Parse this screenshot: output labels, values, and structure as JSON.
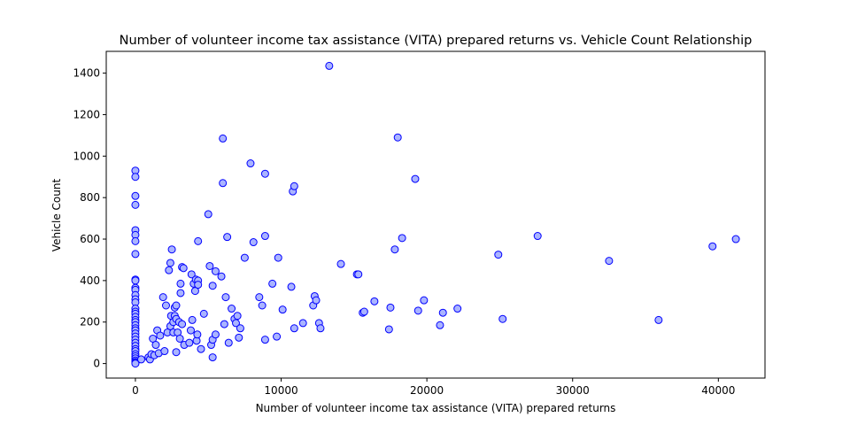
{
  "chart_data": {
    "type": "scatter",
    "title": "Number of volunteer income tax assistance (VITA) prepared returns vs. Vehicle Count Relationship",
    "xlabel": "Number of volunteer income tax assistance (VITA) prepared returns",
    "ylabel": "Vehicle Count",
    "xlim": [
      -2000,
      43200
    ],
    "ylim": [
      -70,
      1505
    ],
    "xticks": [
      0,
      10000,
      20000,
      30000,
      40000
    ],
    "yticks": [
      0,
      200,
      400,
      600,
      800,
      1000,
      1200,
      1400
    ],
    "grid": false,
    "legend": "none",
    "marker_fill": "#aab4ff",
    "marker_edge": "#0000ff",
    "points": [
      [
        0,
        930
      ],
      [
        0,
        900
      ],
      [
        0,
        808
      ],
      [
        0,
        765
      ],
      [
        0,
        643
      ],
      [
        0,
        620
      ],
      [
        0,
        590
      ],
      [
        0,
        528
      ],
      [
        0,
        405
      ],
      [
        0,
        400
      ],
      [
        0,
        365
      ],
      [
        0,
        355
      ],
      [
        0,
        330
      ],
      [
        0,
        310
      ],
      [
        0,
        295
      ],
      [
        0,
        265
      ],
      [
        0,
        250
      ],
      [
        0,
        240
      ],
      [
        0,
        225
      ],
      [
        0,
        210
      ],
      [
        0,
        200
      ],
      [
        0,
        185
      ],
      [
        0,
        170
      ],
      [
        0,
        160
      ],
      [
        0,
        145
      ],
      [
        0,
        130
      ],
      [
        0,
        115
      ],
      [
        0,
        100
      ],
      [
        0,
        85
      ],
      [
        0,
        70
      ],
      [
        0,
        60
      ],
      [
        0,
        45
      ],
      [
        0,
        35
      ],
      [
        0,
        25
      ],
      [
        0,
        15
      ],
      [
        0,
        8
      ],
      [
        0,
        3
      ],
      [
        0,
        0
      ],
      [
        400,
        20
      ],
      [
        900,
        30
      ],
      [
        1000,
        20
      ],
      [
        1100,
        45
      ],
      [
        1200,
        120
      ],
      [
        1300,
        40
      ],
      [
        1400,
        90
      ],
      [
        1500,
        160
      ],
      [
        1600,
        50
      ],
      [
        1700,
        135
      ],
      [
        1900,
        320
      ],
      [
        2000,
        60
      ],
      [
        2100,
        280
      ],
      [
        2200,
        150
      ],
      [
        2300,
        450
      ],
      [
        2400,
        485
      ],
      [
        2400,
        180
      ],
      [
        2450,
        230
      ],
      [
        2500,
        550
      ],
      [
        2600,
        200
      ],
      [
        2600,
        150
      ],
      [
        2700,
        270
      ],
      [
        2700,
        230
      ],
      [
        2800,
        280
      ],
      [
        2800,
        55
      ],
      [
        2800,
        215
      ],
      [
        2900,
        150
      ],
      [
        3000,
        200
      ],
      [
        3050,
        120
      ],
      [
        3100,
        385
      ],
      [
        3100,
        340
      ],
      [
        3200,
        190
      ],
      [
        3200,
        465
      ],
      [
        3300,
        460
      ],
      [
        3350,
        90
      ],
      [
        3700,
        100
      ],
      [
        3800,
        160
      ],
      [
        3850,
        430
      ],
      [
        3900,
        210
      ],
      [
        4000,
        385
      ],
      [
        4100,
        350
      ],
      [
        4150,
        405
      ],
      [
        4200,
        110
      ],
      [
        4250,
        140
      ],
      [
        4300,
        590
      ],
      [
        4300,
        400
      ],
      [
        4300,
        380
      ],
      [
        4500,
        70
      ],
      [
        4700,
        240
      ],
      [
        5000,
        720
      ],
      [
        5100,
        470
      ],
      [
        5200,
        90
      ],
      [
        5300,
        30
      ],
      [
        5300,
        375
      ],
      [
        5300,
        115
      ],
      [
        5500,
        140
      ],
      [
        5500,
        445
      ],
      [
        5900,
        420
      ],
      [
        6000,
        1085
      ],
      [
        6000,
        870
      ],
      [
        6100,
        190
      ],
      [
        6200,
        320
      ],
      [
        6300,
        610
      ],
      [
        6400,
        100
      ],
      [
        6600,
        265
      ],
      [
        6800,
        215
      ],
      [
        6900,
        195
      ],
      [
        7000,
        230
      ],
      [
        7100,
        125
      ],
      [
        7200,
        170
      ],
      [
        7500,
        510
      ],
      [
        7900,
        965
      ],
      [
        8100,
        585
      ],
      [
        8500,
        320
      ],
      [
        8700,
        280
      ],
      [
        8900,
        915
      ],
      [
        8900,
        615
      ],
      [
        8900,
        115
      ],
      [
        9400,
        385
      ],
      [
        9700,
        130
      ],
      [
        9800,
        510
      ],
      [
        10100,
        260
      ],
      [
        10700,
        370
      ],
      [
        10800,
        830
      ],
      [
        10900,
        855
      ],
      [
        10900,
        170
      ],
      [
        11500,
        195
      ],
      [
        12200,
        280
      ],
      [
        12300,
        325
      ],
      [
        12400,
        305
      ],
      [
        12600,
        195
      ],
      [
        12700,
        170
      ],
      [
        13300,
        1435
      ],
      [
        14100,
        480
      ],
      [
        15200,
        430
      ],
      [
        15300,
        430
      ],
      [
        15600,
        245
      ],
      [
        15700,
        250
      ],
      [
        16400,
        300
      ],
      [
        17400,
        165
      ],
      [
        17500,
        270
      ],
      [
        17800,
        550
      ],
      [
        18000,
        1090
      ],
      [
        18300,
        605
      ],
      [
        19200,
        890
      ],
      [
        19400,
        255
      ],
      [
        19800,
        305
      ],
      [
        20900,
        185
      ],
      [
        21100,
        245
      ],
      [
        22100,
        265
      ],
      [
        24900,
        525
      ],
      [
        25200,
        215
      ],
      [
        27600,
        615
      ],
      [
        32500,
        495
      ],
      [
        35900,
        210
      ],
      [
        39600,
        565
      ],
      [
        41200,
        600
      ]
    ]
  }
}
